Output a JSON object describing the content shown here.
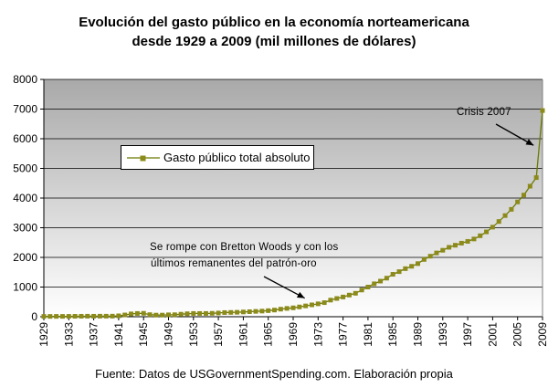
{
  "chart_data": {
    "type": "line",
    "title": "Evolución del gasto público en la economía norteamericana",
    "subtitle": "desde 1929 a 2009 (mil millones de dólares)",
    "xlabel": "",
    "ylabel": "",
    "ylim": [
      0,
      8000
    ],
    "yticks": [
      "0",
      "1000",
      "2000",
      "3000",
      "4000",
      "5000",
      "6000",
      "7000",
      "8000"
    ],
    "xlim": [
      1929,
      2009
    ],
    "xticks": [
      "1929",
      "1933",
      "1937",
      "1941",
      "1945",
      "1949",
      "1953",
      "1957",
      "1961",
      "1965",
      "1969",
      "1973",
      "1977",
      "1981",
      "1985",
      "1989",
      "1993",
      "1997",
      "2001",
      "2005",
      "2009"
    ],
    "grid": "horizontal",
    "legend_position": "center-left",
    "series": [
      {
        "name": "Gasto público total absoluto",
        "color": "#6b7a00",
        "marker_color": "#8c8a1a",
        "x": [
          1929,
          1930,
          1931,
          1932,
          1933,
          1934,
          1935,
          1936,
          1937,
          1938,
          1939,
          1940,
          1941,
          1942,
          1943,
          1944,
          1945,
          1946,
          1947,
          1948,
          1949,
          1950,
          1951,
          1952,
          1953,
          1954,
          1955,
          1956,
          1957,
          1958,
          1959,
          1960,
          1961,
          1962,
          1963,
          1964,
          1965,
          1966,
          1967,
          1968,
          1969,
          1970,
          1971,
          1972,
          1973,
          1974,
          1975,
          1976,
          1977,
          1978,
          1979,
          1980,
          1981,
          1982,
          1983,
          1984,
          1985,
          1986,
          1987,
          1988,
          1989,
          1990,
          1991,
          1992,
          1993,
          1994,
          1995,
          1996,
          1997,
          1998,
          1999,
          2000,
          2001,
          2002,
          2003,
          2004,
          2005,
          2006,
          2007,
          2008,
          2009
        ],
        "values": [
          10,
          11,
          12,
          12,
          13,
          15,
          16,
          18,
          17,
          19,
          19,
          20,
          31,
          60,
          95,
          110,
          115,
          70,
          55,
          55,
          65,
          68,
          85,
          100,
          110,
          110,
          110,
          115,
          125,
          140,
          145,
          150,
          160,
          170,
          180,
          190,
          205,
          225,
          255,
          280,
          300,
          330,
          365,
          400,
          435,
          475,
          560,
          615,
          665,
          730,
          790,
          900,
          1000,
          1110,
          1200,
          1300,
          1430,
          1520,
          1620,
          1700,
          1790,
          1930,
          2040,
          2150,
          2240,
          2340,
          2410,
          2480,
          2540,
          2620,
          2730,
          2860,
          3020,
          3210,
          3410,
          3620,
          3870,
          4100,
          4400,
          4690,
          6950
        ]
      }
    ],
    "annotations": [
      {
        "lines": [
          "Se rompe con Bretton Woods y con los",
          "últimos remanentes del patrón-oro"
        ],
        "points_to": {
          "x": 1971,
          "y": 380
        }
      },
      {
        "lines": [
          "Crisis 2007"
        ],
        "points_to": {
          "x": 2008,
          "y": 5900
        }
      }
    ]
  },
  "footer": "Fuente: Datos de USGovernmentSpending.com. Elaboración propia",
  "colors": {
    "plot_gradient_top": "#a9a9a9",
    "plot_gradient_bottom": "#ffffff",
    "grid": "#000000",
    "line": "#6b7a00",
    "marker": "#8c8a1a"
  }
}
